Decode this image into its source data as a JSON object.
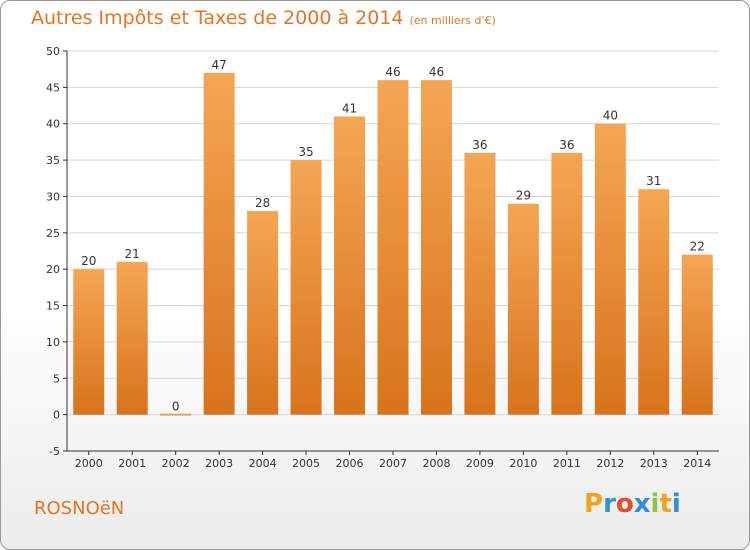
{
  "header": {
    "title": "Autres Impôts et Taxes de 2000 à 2014",
    "subtitle": "(en milliers d'€)"
  },
  "footer": {
    "commune": "ROSNOëN",
    "logo_letters": [
      "P",
      "r",
      "o",
      "x",
      "i",
      "t",
      "i"
    ],
    "logo_colors": [
      "#f3a21c",
      "#2f8fd8",
      "#e84a2a",
      "#2f8fd8",
      "#8cc63f",
      "#f3a21c",
      "#2f8fd8"
    ]
  },
  "colors": {
    "bar_top": "#f5a653",
    "bar_bottom": "#d8731c",
    "zero_bar": "#e8a060",
    "grid": "#d6d6d6",
    "axis": "#333333",
    "title": "#e8731e"
  },
  "chart_data": {
    "type": "bar",
    "categories": [
      "2000",
      "2001",
      "2002",
      "2003",
      "2004",
      "2005",
      "2006",
      "2007",
      "2008",
      "2009",
      "2010",
      "2011",
      "2012",
      "2013",
      "2014"
    ],
    "values": [
      20,
      21,
      0,
      47,
      28,
      35,
      41,
      46,
      46,
      36,
      29,
      36,
      40,
      31,
      22
    ],
    "title": "Autres Impôts et Taxes de 2000 à 2014",
    "ylim": [
      -5,
      50
    ],
    "yticks": [
      -5,
      0,
      5,
      10,
      15,
      20,
      25,
      30,
      35,
      40,
      45,
      50
    ],
    "grid": true,
    "legend": "none"
  }
}
